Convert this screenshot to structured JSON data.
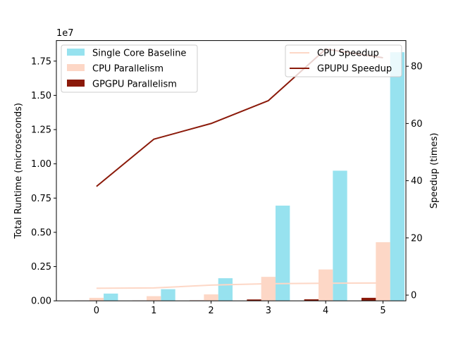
{
  "chart_data": {
    "type": "bar",
    "categories": [
      "0",
      "1",
      "2",
      "3",
      "4",
      "5"
    ],
    "x": [
      0,
      1,
      2,
      3,
      4,
      5
    ],
    "y_multiplier_label": "1e7",
    "ylabel": "Total Runtime (microseconds)",
    "ylim": [
      0,
      19000000
    ],
    "y_ticks": [
      0,
      2500000,
      5000000,
      7500000,
      10000000,
      12500000,
      15000000,
      17500000
    ],
    "y_tick_labels": [
      "0.00",
      "0.25",
      "0.50",
      "0.75",
      "1.00",
      "1.25",
      "1.50",
      "1.75"
    ],
    "y2label": "Speedup (times)",
    "y2lim": [
      -2,
      89
    ],
    "y2_ticks": [
      0,
      20,
      40,
      60,
      80
    ],
    "y2_tick_labels": [
      "0",
      "20",
      "40",
      "60",
      "80"
    ],
    "xlim": [
      -0.7,
      5.4
    ],
    "bar_series": [
      {
        "name": "Single Core Baseline",
        "color": "#97e2ef",
        "offset": 0.25,
        "values": [
          530000,
          850000,
          1650000,
          6950000,
          9500000,
          18150000
        ]
      },
      {
        "name": "CPU Parallelism",
        "color": "#fdd7c6",
        "offset": 0,
        "values": [
          220000,
          340000,
          470000,
          1750000,
          2290000,
          4280000
        ]
      },
      {
        "name": "GPGPU Parallelism",
        "color": "#8b1a0a",
        "offset": -0.25,
        "values": [
          14000,
          16000,
          27000,
          100000,
          110000,
          220000
        ]
      }
    ],
    "line_series": [
      {
        "name": "CPU Speedup",
        "color": "#fdd7c6",
        "values": [
          2.4,
          2.5,
          3.5,
          4.0,
          4.15,
          4.25
        ]
      },
      {
        "name": "GPUPU Speedup",
        "color": "#8b1a0a",
        "values": [
          38,
          54.5,
          60,
          68,
          86,
          83
        ]
      }
    ],
    "legend_left_placement": "upper-left",
    "legend_right_placement": "upper-right",
    "grid": false
  }
}
